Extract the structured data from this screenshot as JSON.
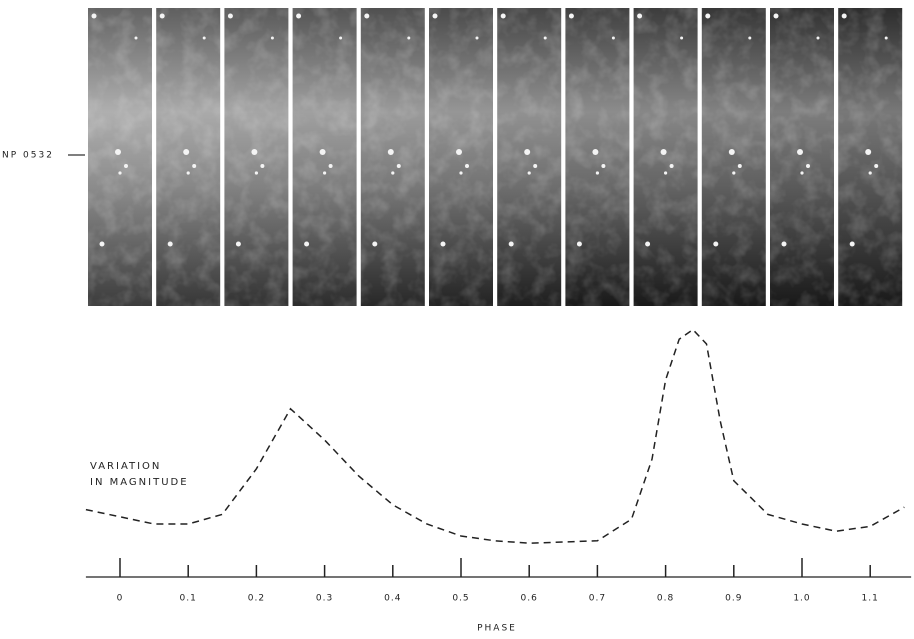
{
  "chart_data": {
    "type": "line",
    "label": "NP 0532",
    "annotation": [
      "VARIATION",
      "IN MAGNITUDE"
    ],
    "xlabel": "PHASE",
    "x": [
      -0.05,
      0,
      0.05,
      0.1,
      0.15,
      0.2,
      0.25,
      0.3,
      0.35,
      0.4,
      0.45,
      0.5,
      0.55,
      0.6,
      0.7,
      0.75,
      0.78,
      0.8,
      0.82,
      0.84,
      0.86,
      0.88,
      0.9,
      0.95,
      1.0,
      1.05,
      1.1,
      1.15
    ],
    "series": [
      {
        "color": "#222222",
        "values": [
          21,
          18,
          15,
          15,
          19,
          38,
          63,
          50,
          35,
          23,
          15,
          10,
          8,
          7,
          8,
          17,
          42,
          75,
          92,
          96,
          90,
          58,
          33,
          19,
          15,
          12,
          14,
          22
        ]
      }
    ],
    "xlim": [
      -0.05,
      1.16
    ],
    "xticks": [
      {
        "value": 0,
        "label": "0"
      },
      0.1,
      0.2,
      0.3,
      0.4,
      0.5,
      0.6,
      0.7,
      0.8,
      0.9,
      {
        "value": 1,
        "label": "1.0"
      },
      1.1
    ],
    "ylim": [
      0,
      100
    ],
    "line_style": "dashed"
  }
}
